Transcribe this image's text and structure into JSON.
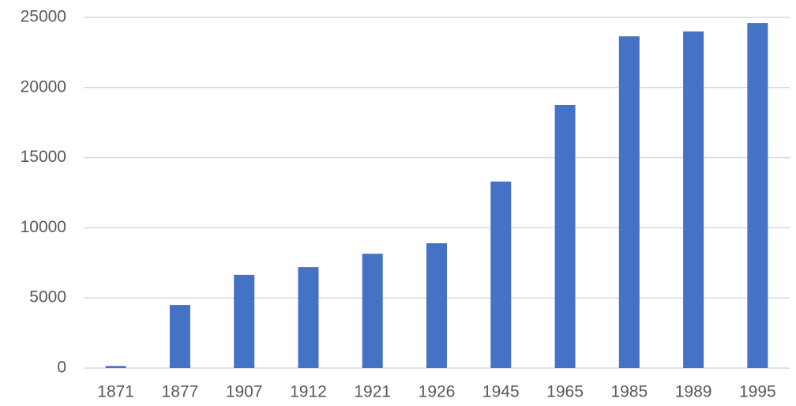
{
  "chart_data": {
    "type": "bar",
    "categories": [
      "1871",
      "1877",
      "1907",
      "1912",
      "1921",
      "1926",
      "1945",
      "1965",
      "1985",
      "1989",
      "1995"
    ],
    "values": [
      150,
      4500,
      6650,
      7200,
      8150,
      8900,
      13300,
      18750,
      23650,
      24000,
      24600
    ],
    "color": "#4472c4",
    "ylim": [
      0,
      25000
    ],
    "yticks": [
      0,
      5000,
      10000,
      15000,
      20000,
      25000
    ],
    "grid": true
  }
}
